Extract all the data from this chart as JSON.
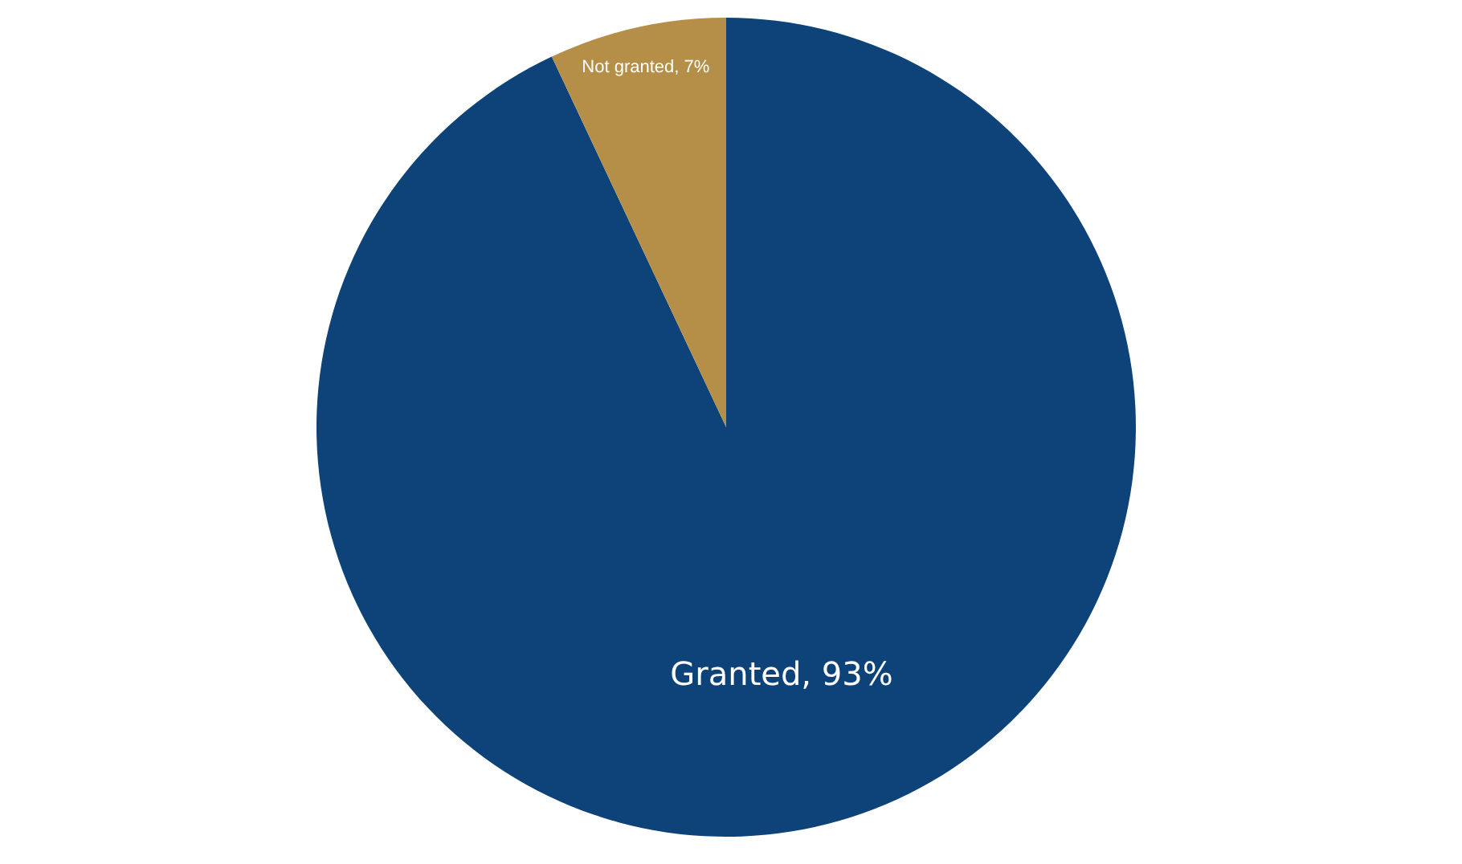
{
  "chart_data": {
    "type": "pie",
    "categories": [
      "Granted",
      "Not granted"
    ],
    "values": [
      93,
      7
    ],
    "colors": [
      "#0d4378",
      "#b58f48"
    ],
    "value_labels": [
      "93%",
      "7%"
    ]
  }
}
